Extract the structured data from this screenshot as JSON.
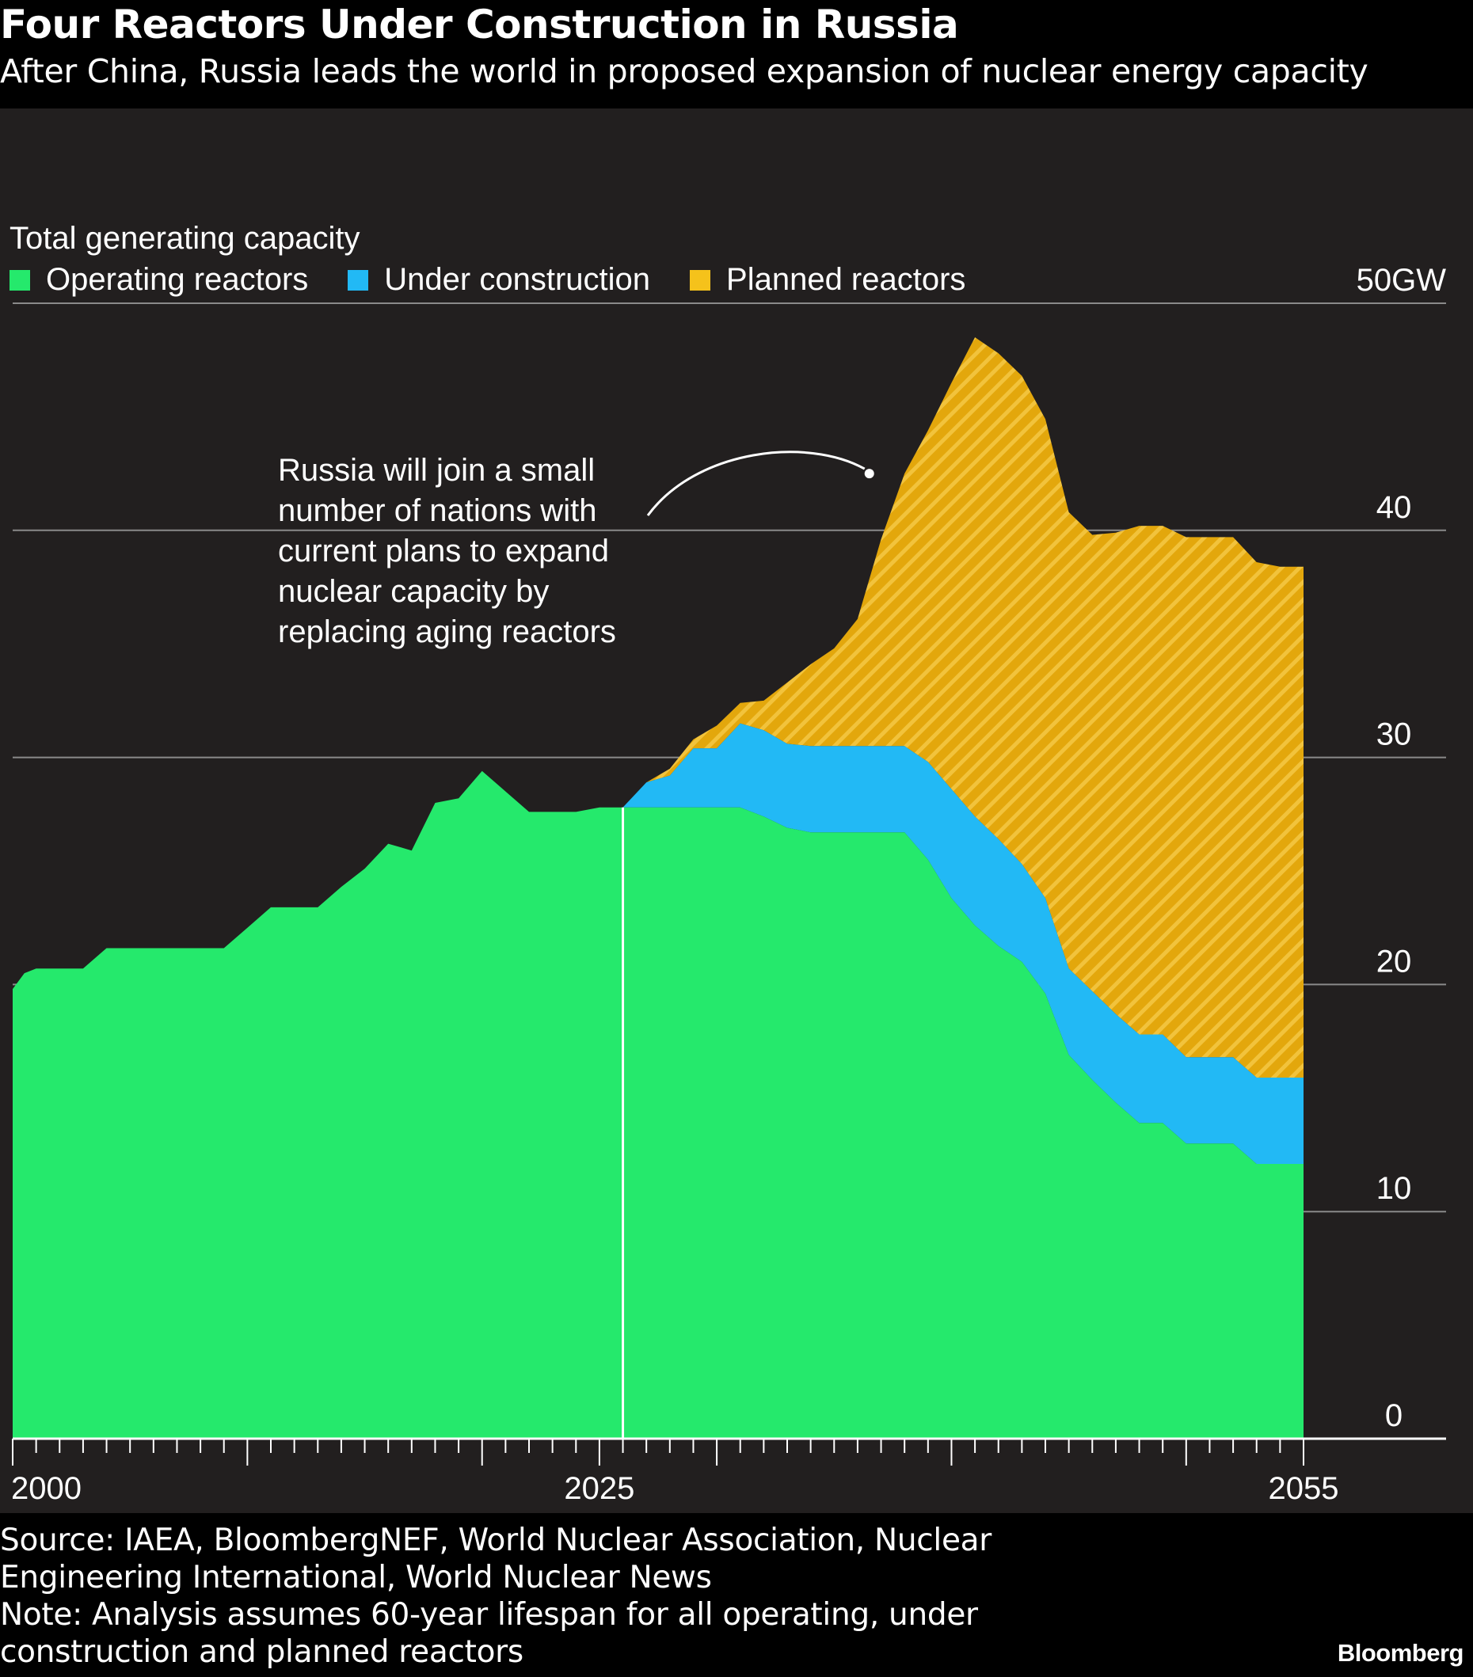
{
  "title": "Four Reactors Under Construction in Russia",
  "subtitle": "After China, Russia leads the world in proposed expansion of nuclear energy capacity",
  "measure_label": "Total generating capacity",
  "legend": [
    {
      "label": "Operating reactors",
      "color": "#25e96c"
    },
    {
      "label": "Under construction",
      "color": "#22b9f5"
    },
    {
      "label": "Planned reactors",
      "color": "#f5c21b"
    }
  ],
  "annotation": "Russia will join a small\nnumber of nations with\ncurrent plans to expand\nnuclear capacity by\nreplacing aging reactors",
  "source": "Source: IAEA, BloombergNEF, World Nuclear Association, Nuclear",
  "source_line2": "Engineering International, World Nuclear News",
  "note": "Note: Analysis assumes 60-year lifespan for all operating, under",
  "note_line2": "construction and planned reactors",
  "brand": "Bloomberg",
  "colors": {
    "operating": "#25e96c",
    "construction": "#22b9f5",
    "planned": "#e3a70c",
    "planned_hatch": "#f5c21b",
    "panel_bg": "#221f1f",
    "grid": "#8a8a8a"
  },
  "chart_data": {
    "type": "area",
    "stacked": true,
    "x_ticks": [
      "2000",
      "2025",
      "2055"
    ],
    "y_ticks": [
      "0",
      "10",
      "20",
      "30",
      "40",
      "50GW"
    ],
    "ylim": [
      0,
      50
    ],
    "xlim": [
      2000,
      2055
    ],
    "grid": true,
    "y_axis_position": "right",
    "divider_year": 2026,
    "annotation_point": {
      "x": 2036.5,
      "y": 42.5
    },
    "series": [
      {
        "name": "Operating reactors",
        "points": [
          [
            2000,
            19.8
          ],
          [
            2000.5,
            20.5
          ],
          [
            2001,
            20.7
          ],
          [
            2002,
            20.7
          ],
          [
            2003,
            20.7
          ],
          [
            2004,
            21.6
          ],
          [
            2005,
            21.6
          ],
          [
            2006,
            21.6
          ],
          [
            2007,
            21.6
          ],
          [
            2008,
            21.6
          ],
          [
            2009,
            21.6
          ],
          [
            2010,
            22.5
          ],
          [
            2011,
            23.4
          ],
          [
            2012,
            23.4
          ],
          [
            2013,
            23.4
          ],
          [
            2014,
            24.3
          ],
          [
            2015,
            25.1
          ],
          [
            2016,
            26.2
          ],
          [
            2017,
            25.9
          ],
          [
            2018,
            28.0
          ],
          [
            2019,
            28.2
          ],
          [
            2020,
            29.4
          ],
          [
            2021,
            28.5
          ],
          [
            2022,
            27.6
          ],
          [
            2023,
            27.6
          ],
          [
            2024,
            27.6
          ],
          [
            2025,
            27.8
          ],
          [
            2026,
            27.8
          ],
          [
            2027,
            27.8
          ],
          [
            2028,
            27.8
          ],
          [
            2029,
            27.8
          ],
          [
            2030,
            27.8
          ],
          [
            2031,
            27.8
          ],
          [
            2032,
            27.4
          ],
          [
            2033,
            26.9
          ],
          [
            2034,
            26.7
          ],
          [
            2035,
            26.7
          ],
          [
            2036,
            26.7
          ],
          [
            2037,
            26.7
          ],
          [
            2038,
            26.7
          ],
          [
            2039,
            25.5
          ],
          [
            2040,
            23.8
          ],
          [
            2041,
            22.6
          ],
          [
            2042,
            21.7
          ],
          [
            2043,
            21.0
          ],
          [
            2044,
            19.6
          ],
          [
            2045,
            16.9
          ],
          [
            2046,
            15.8
          ],
          [
            2047,
            14.8
          ],
          [
            2048,
            13.9
          ],
          [
            2049,
            13.9
          ],
          [
            2050,
            13.0
          ],
          [
            2051,
            13.0
          ],
          [
            2052,
            13.0
          ],
          [
            2053,
            12.1
          ],
          [
            2054,
            12.1
          ],
          [
            2055,
            12.1
          ]
        ]
      },
      {
        "name": "Under construction",
        "points": [
          [
            2026,
            0
          ],
          [
            2027,
            1.1
          ],
          [
            2028,
            1.4
          ],
          [
            2029,
            2.6
          ],
          [
            2030,
            2.6
          ],
          [
            2031,
            3.7
          ],
          [
            2032,
            3.8
          ],
          [
            2033,
            3.7
          ],
          [
            2034,
            3.8
          ],
          [
            2035,
            3.8
          ],
          [
            2036,
            3.8
          ],
          [
            2037,
            3.8
          ],
          [
            2038,
            3.8
          ],
          [
            2039,
            4.3
          ],
          [
            2040,
            4.8
          ],
          [
            2041,
            4.8
          ],
          [
            2042,
            4.7
          ],
          [
            2043,
            4.3
          ],
          [
            2044,
            4.2
          ],
          [
            2045,
            3.8
          ],
          [
            2046,
            3.9
          ],
          [
            2047,
            3.9
          ],
          [
            2048,
            3.9
          ],
          [
            2049,
            3.9
          ],
          [
            2050,
            3.8
          ],
          [
            2051,
            3.8
          ],
          [
            2052,
            3.8
          ],
          [
            2053,
            3.8
          ],
          [
            2054,
            3.8
          ],
          [
            2055,
            3.8
          ]
        ]
      },
      {
        "name": "Planned reactors",
        "points": [
          [
            2026,
            0
          ],
          [
            2027,
            0
          ],
          [
            2028,
            0.3
          ],
          [
            2029,
            0.4
          ],
          [
            2030,
            1.0
          ],
          [
            2031,
            0.9
          ],
          [
            2032,
            1.3
          ],
          [
            2033,
            2.7
          ],
          [
            2034,
            3.6
          ],
          [
            2035,
            4.3
          ],
          [
            2036,
            5.6
          ],
          [
            2037,
            9.1
          ],
          [
            2038,
            12.0
          ],
          [
            2039,
            14.6
          ],
          [
            2040,
            17.9
          ],
          [
            2041,
            21.1
          ],
          [
            2042,
            21.4
          ],
          [
            2043,
            21.5
          ],
          [
            2044,
            21.1
          ],
          [
            2045,
            20.1
          ],
          [
            2046,
            20.1
          ],
          [
            2047,
            21.2
          ],
          [
            2048,
            22.4
          ],
          [
            2049,
            22.4
          ],
          [
            2050,
            22.9
          ],
          [
            2051,
            22.9
          ],
          [
            2052,
            22.9
          ],
          [
            2053,
            22.7
          ],
          [
            2054,
            22.5
          ],
          [
            2055,
            22.5
          ]
        ]
      }
    ]
  }
}
